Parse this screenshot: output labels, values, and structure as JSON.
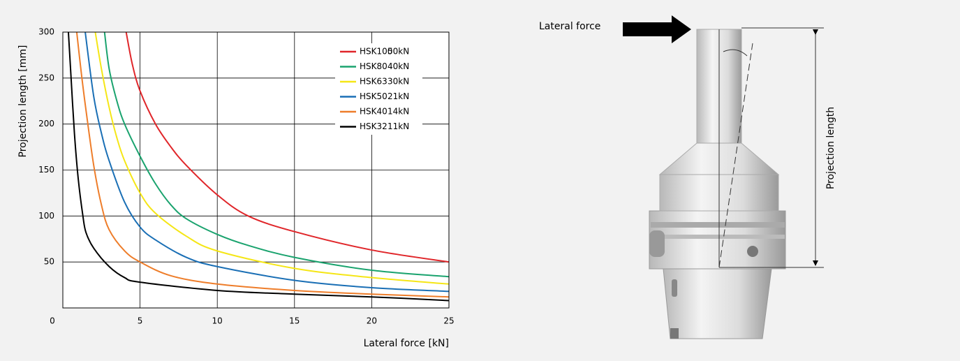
{
  "chart_data": {
    "type": "line",
    "xlabel": "Lateral force [kN]",
    "ylabel": "Projection length [mm]",
    "xlim": [
      0,
      25
    ],
    "ylim": [
      0,
      300
    ],
    "xticks": [
      0,
      5,
      10,
      15,
      20,
      25
    ],
    "yticks": [
      50,
      100,
      150,
      200,
      250,
      300
    ],
    "grid": true,
    "legend": "upper right",
    "series": [
      {
        "name": "HSK100",
        "capacity": "50kN",
        "color": "#e0262a",
        "x": [
          4.1,
          4.5,
          5,
          6,
          7,
          8,
          10,
          12,
          15,
          20,
          25
        ],
        "values": [
          300,
          265,
          236,
          200,
          175,
          155,
          123,
          100,
          83,
          63,
          50
        ]
      },
      {
        "name": "HSK80",
        "capacity": "40kN",
        "color": "#1aa36e",
        "x": [
          2.7,
          3,
          3.5,
          4,
          5,
          6,
          7,
          8,
          10,
          12,
          15,
          20,
          25
        ],
        "values": [
          300,
          260,
          225,
          200,
          165,
          135,
          112,
          97,
          80,
          68,
          55,
          41,
          34
        ]
      },
      {
        "name": "HSK63",
        "capacity": "30kN",
        "color": "#f5e616",
        "x": [
          2.1,
          2.5,
          3,
          3.5,
          4,
          5,
          6,
          8,
          10,
          15,
          20,
          25
        ],
        "values": [
          300,
          260,
          218,
          185,
          160,
          125,
          103,
          78,
          62,
          43,
          33,
          26
        ]
      },
      {
        "name": "HSK50",
        "capacity": "21kN",
        "color": "#1a6fb5",
        "x": [
          1.45,
          2,
          2.5,
          3,
          4,
          5,
          6,
          8,
          10,
          15,
          20,
          25
        ],
        "values": [
          300,
          230,
          190,
          160,
          115,
          88,
          74,
          55,
          45,
          30,
          22,
          18
        ]
      },
      {
        "name": "HSK40",
        "capacity": "14kN",
        "color": "#ee7d2a",
        "x": [
          0.9,
          1.2,
          1.5,
          2,
          2.5,
          3,
          4,
          5,
          7,
          10,
          15,
          20,
          25
        ],
        "values": [
          300,
          255,
          215,
          155,
          112,
          85,
          62,
          50,
          35,
          26,
          19,
          15,
          12
        ]
      },
      {
        "name": "HSK32",
        "capacity": "11kN",
        "color": "#000000",
        "x": [
          0.36,
          0.5,
          0.75,
          1,
          1.3,
          1.5,
          2,
          3,
          4,
          5,
          10,
          15,
          20,
          25
        ],
        "values": [
          300,
          260,
          190,
          140,
          100,
          82,
          65,
          45,
          33,
          28,
          19,
          15,
          12,
          8
        ]
      }
    ]
  },
  "illustration": {
    "force_label": "Lateral force",
    "length_label": "Projection length"
  }
}
